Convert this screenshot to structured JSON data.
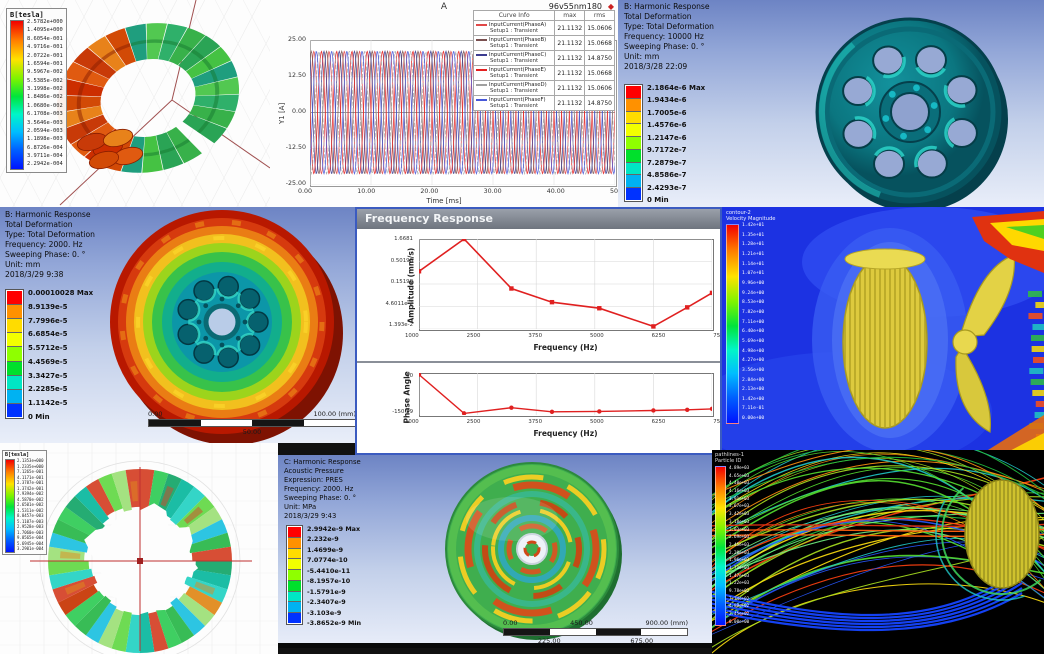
{
  "panels": {
    "maxwell_torus": {
      "legend_title": "B[tesla]",
      "legend_values": [
        "2.5782e+000",
        "1.4095e+000",
        "8.6054e-001",
        "4.9716e-001",
        "2.0722e-001",
        "1.6594e-001",
        "9.5967e-002",
        "5.5385e-002",
        "3.1998e-002",
        "1.8486e-002",
        "1.0680e-002",
        "6.1708e-003",
        "3.5646e-003",
        "2.0594e-003",
        "1.1898e-003",
        "6.8726e-004",
        "3.9711e-004",
        "2.2942e-004"
      ]
    },
    "current_plot": {
      "title": "A",
      "model_label": "96v55nm180",
      "model_icon": "◆",
      "y_axis_label": "Y1 [A]",
      "x_axis_label": "Time [ms]",
      "y_ticks": [
        "25.00",
        "12.50",
        "0.00",
        "-12.50",
        "-25.00"
      ],
      "x_ticks": [
        "0.00",
        "10.00",
        "20.00",
        "30.00",
        "40.00",
        "50.00"
      ],
      "table": {
        "headers": [
          "Curve Info",
          "max",
          "rms"
        ],
        "rows": [
          {
            "name": "InputCurrent(PhaseA)",
            "setup": "Setup1 : Transient",
            "max": "21.1132",
            "rms": "15.0606",
            "color": "#e04848"
          },
          {
            "name": "InputCurrent(PhaseB)",
            "setup": "Setup1 : Transient",
            "max": "21.1132",
            "rms": "15.0668",
            "color": "#7a5050"
          },
          {
            "name": "InputCurrent(PhaseC)",
            "setup": "Setup1 : Transient",
            "max": "21.1132",
            "rms": "14.8750",
            "color": "#3c3c90"
          },
          {
            "name": "InputCurrent(PhaseE)",
            "setup": "Setup1 : Transient",
            "max": "21.1132",
            "rms": "15.0668",
            "color": "#e42020"
          },
          {
            "name": "InputCurrent(PhaseD)",
            "setup": "Setup1 : Transient",
            "max": "21.1132",
            "rms": "15.0606",
            "color": "#a0a0a0"
          },
          {
            "name": "InputCurrent(PhaseF)",
            "setup": "Setup1 : Transient",
            "max": "21.1132",
            "rms": "14.8750",
            "color": "#4858d8"
          }
        ]
      }
    },
    "harmonic_wheel_blue": {
      "header_lines": [
        "B: Harmonic Response",
        "Total Deformation",
        "Type: Total Deformation",
        "Frequency: 10000 Hz",
        "Sweeping Phase: 0. °",
        "Unit: mm",
        "2018/3/28 22:09"
      ],
      "legend_labels": [
        "2.1864e-6 Max",
        "1.9434e-6",
        "1.7005e-6",
        "1.4576e-6",
        "1.2147e-6",
        "9.7172e-7",
        "7.2879e-7",
        "4.8586e-7",
        "2.4293e-7",
        "0 Min"
      ]
    },
    "harmonic_wheel_red": {
      "header_lines": [
        "B: Harmonic Response",
        "Total Deformation",
        "Type: Total Deformation",
        "Frequency: 2000. Hz",
        "Sweeping Phase: 0. °",
        "Unit: mm",
        "2018/3/29 9:38"
      ],
      "legend_labels": [
        "0.00010028 Max",
        "8.9139e-5",
        "7.7996e-5",
        "6.6854e-5",
        "5.5712e-5",
        "4.4569e-5",
        "3.3427e-5",
        "2.2285e-5",
        "1.1142e-5",
        "0 Min"
      ],
      "ruler_top": [
        "0.00",
        "100.00 (mm)"
      ],
      "ruler_bottom": [
        "50.00"
      ]
    },
    "freq_response": {
      "window_title": "Frequency Response",
      "amplitude_ylabel": "Amplitude (mm/s)",
      "phase_ylabel": "Phase Angle",
      "xlabel": "Frequency (Hz)",
      "amp_yticks": [
        "1.6681",
        "0.50198",
        "0.15198",
        "4.6011e-2",
        "1.393e-2"
      ],
      "phase_yticks": [
        "90",
        "-150.29"
      ],
      "xticks": [
        "1000",
        "2500",
        "3750",
        "5000",
        "6250",
        "7500"
      ]
    },
    "cfd_velocity": {
      "legend_title_line1": "contour-2",
      "legend_title_line2": "Velocity Magnitude",
      "legend_values": [
        "1.42e+01",
        "1.35e+01",
        "1.28e+01",
        "1.21e+01",
        "1.14e+01",
        "1.07e+01",
        "9.96e+00",
        "9.24e+00",
        "8.53e+00",
        "7.82e+00",
        "7.11e+00",
        "6.40e+00",
        "5.69e+00",
        "4.98e+00",
        "4.27e+00",
        "3.56e+00",
        "2.84e+00",
        "2.13e+00",
        "1.42e+00",
        "7.11e-01",
        "0.00e+00"
      ]
    },
    "maxwell_stator": {
      "legend_title": "B[tesla]",
      "legend_values": [
        "2.1353e+000",
        "1.2335e+000",
        "7.1265e-001",
        "4.1171e-001",
        "2.3787e-001",
        "1.3742e-001",
        "7.9394e-002",
        "4.5870e-002",
        "2.6501e-002",
        "1.5311e-002",
        "8.8457e-003",
        "5.1107e-003",
        "2.9528e-003",
        "1.7060e-003",
        "9.8565e-004",
        "5.6945e-004",
        "3.2901e-004"
      ]
    },
    "acoustic_disc": {
      "header_lines": [
        "C: Harmonic Response",
        "Acoustic Pressure",
        "Expression: PRES",
        "Frequency: 2000. Hz",
        "Sweeping Phase: 0. °",
        "Unit: MPa",
        "2018/3/29 9:43"
      ],
      "legend_labels": [
        "2.9942e-9 Max",
        "2.232e-9",
        "1.4699e-9",
        "7.0774e-10",
        "-5.4410e-11",
        "-8.1957e-10",
        "-1.5791e-9",
        "-2.3407e-9",
        "-3.103e-9",
        "-3.8652e-9 Min"
      ],
      "ruler_top": [
        "0.00",
        "450.00",
        "900.00 (mm)"
      ],
      "ruler_bottom": [
        "225.00",
        "675.00"
      ]
    },
    "streamlines": {
      "legend_title_line1": "pathlines-1",
      "legend_title_line2": "Particle ID",
      "legend_values": [
        "4.89e+03",
        "4.65e+03",
        "4.40e+03",
        "4.16e+03",
        "3.91e+03",
        "3.67e+03",
        "3.42e+03",
        "3.18e+03",
        "2.93e+03",
        "2.69e+03",
        "2.45e+03",
        "2.20e+03",
        "1.96e+03",
        "1.71e+03",
        "1.47e+03",
        "1.22e+03",
        "9.78e+02",
        "7.34e+02",
        "4.89e+02",
        "2.45e+02",
        "0.00e+00"
      ]
    }
  },
  "colors": {
    "ansys_bands": [
      "#ff0000",
      "#ff9100",
      "#ffdc00",
      "#f2ff00",
      "#8fff00",
      "#00e02c",
      "#00e6c4",
      "#00b2f2",
      "#0032ff"
    ]
  },
  "chart_data": [
    {
      "type": "line",
      "title": "A",
      "subtitle": "96v55nm180",
      "xlabel": "Time [ms]",
      "ylabel": "Y1 [A]",
      "xlim": [
        0,
        50
      ],
      "ylim": [
        -25,
        25
      ],
      "x_ticks": [
        0,
        10,
        20,
        30,
        40,
        50
      ],
      "y_ticks": [
        -25,
        -12.5,
        0,
        12.5,
        25
      ],
      "grid": true,
      "legend_position": "right",
      "series": [
        {
          "name": "InputCurrent(PhaseA) Setup1 : Transient",
          "waveform": "sine",
          "amplitude": 21.1132,
          "period_ms": 2.5,
          "phase_deg": 0,
          "max": 21.1132,
          "rms": 15.0606,
          "color": "#e04848"
        },
        {
          "name": "InputCurrent(PhaseB) Setup1 : Transient",
          "waveform": "sine",
          "amplitude": 21.1132,
          "period_ms": 2.5,
          "phase_deg": 60,
          "max": 21.1132,
          "rms": 15.0668,
          "color": "#7a5050"
        },
        {
          "name": "InputCurrent(PhaseC) Setup1 : Transient",
          "waveform": "sine",
          "amplitude": 21.1132,
          "period_ms": 2.5,
          "phase_deg": 120,
          "max": 21.1132,
          "rms": 14.875,
          "color": "#3c3c90"
        },
        {
          "name": "InputCurrent(PhaseE) Setup1 : Transient",
          "waveform": "sine",
          "amplitude": 21.1132,
          "period_ms": 2.5,
          "phase_deg": 180,
          "max": 21.1132,
          "rms": 15.0668,
          "color": "#e42020"
        },
        {
          "name": "InputCurrent(PhaseD) Setup1 : Transient",
          "waveform": "sine",
          "amplitude": 21.1132,
          "period_ms": 2.5,
          "phase_deg": 240,
          "max": 21.1132,
          "rms": 15.0606,
          "color": "#a0a0a0",
          "dash": "4 2"
        },
        {
          "name": "InputCurrent(PhaseF) Setup1 : Transient",
          "waveform": "sine",
          "amplitude": 21.1132,
          "period_ms": 2.5,
          "phase_deg": 300,
          "max": 21.1132,
          "rms": 14.875,
          "color": "#4858d8"
        }
      ]
    },
    {
      "type": "line",
      "title": "Frequency Response - Amplitude",
      "xlabel": "Frequency (Hz)",
      "ylabel": "Amplitude (mm/s)",
      "yscale": "log",
      "xlim": [
        1000,
        7500
      ],
      "ylim": [
        0.01393,
        1.6681
      ],
      "x_ticks": [
        1000,
        2500,
        3750,
        5000,
        6250,
        7500
      ],
      "y_ticks": [
        1.6681,
        0.50198,
        0.15198,
        0.046011,
        0.01393
      ],
      "grid": true,
      "marker": "square",
      "color": "#e02020",
      "x": [
        1000,
        2000,
        3050,
        3950,
        5000,
        6200,
        6950,
        7500
      ],
      "y": [
        0.3,
        1.6681,
        0.12,
        0.058,
        0.042,
        0.016,
        0.044,
        0.095
      ]
    },
    {
      "type": "line",
      "title": "Frequency Response - Phase",
      "xlabel": "Frequency (Hz)",
      "ylabel": "Phase Angle",
      "xlim": [
        1000,
        7500
      ],
      "ylim": [
        -160,
        100
      ],
      "x_ticks": [
        1000,
        2500,
        3750,
        5000,
        6250,
        7500
      ],
      "y_ticks": [
        90,
        -150.29
      ],
      "grid": true,
      "marker": "circle",
      "color": "#e02020",
      "x": [
        1000,
        2000,
        3050,
        3950,
        5000,
        6200,
        6950,
        7500
      ],
      "y": [
        90,
        -150,
        -115,
        -140,
        -138,
        -132,
        -128,
        -122
      ]
    }
  ]
}
